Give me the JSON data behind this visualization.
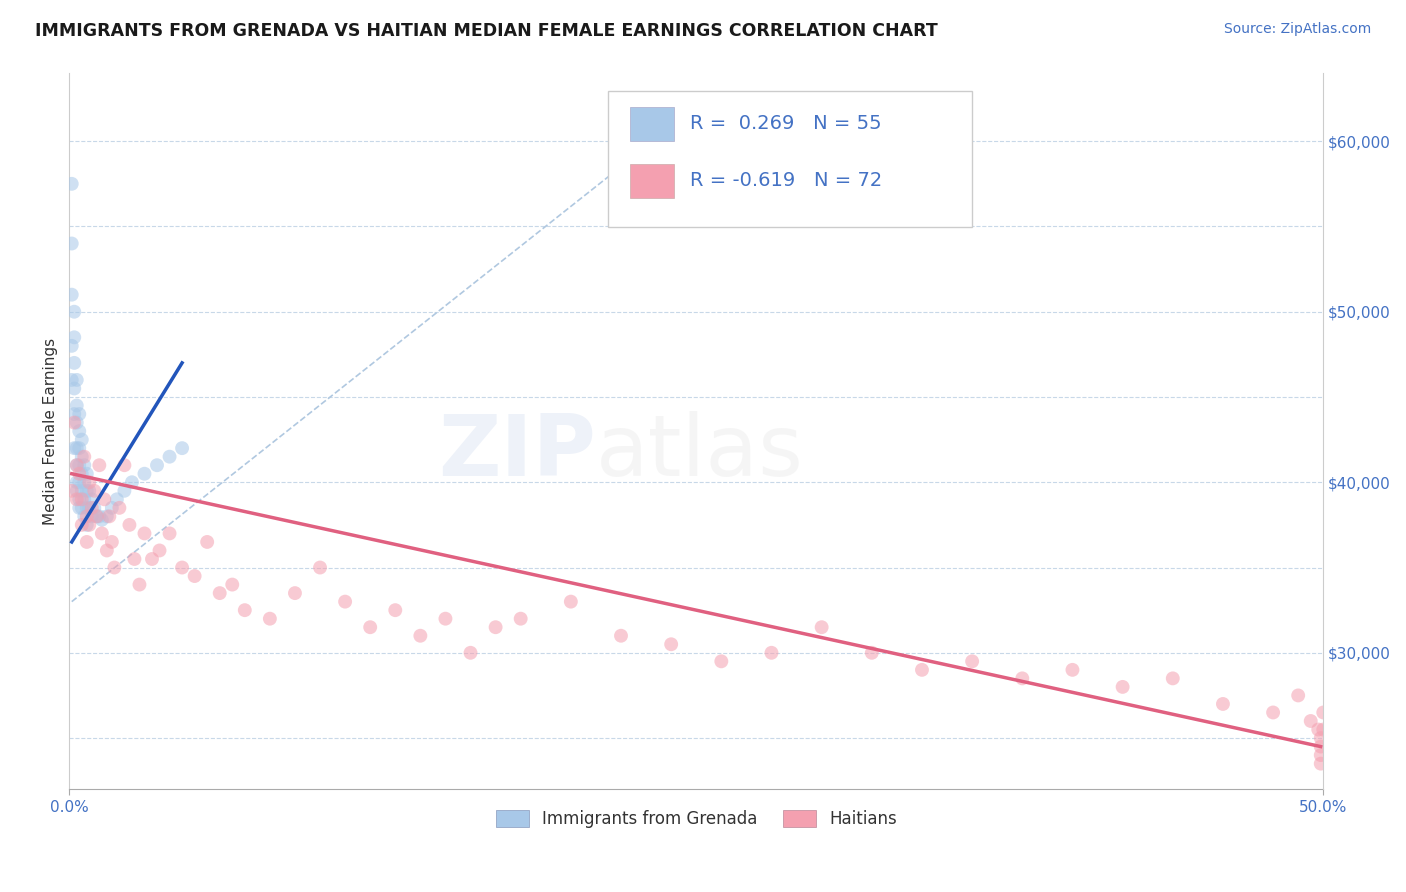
{
  "title": "IMMIGRANTS FROM GRENADA VS HAITIAN MEDIAN FEMALE EARNINGS CORRELATION CHART",
  "source": "Source: ZipAtlas.com",
  "ylabel": "Median Female Earnings",
  "xlim": [
    0.0,
    0.5
  ],
  "ylim": [
    22000,
    64000
  ],
  "yticks": [
    30000,
    40000,
    50000,
    60000
  ],
  "ytick_labels": [
    "$30,000",
    "$40,000",
    "$50,000",
    "$60,000"
  ],
  "xticks": [
    0.0,
    0.5
  ],
  "xtick_labels": [
    "0.0%",
    "50.0%"
  ],
  "legend_r1": "R =  0.269   N = 55",
  "legend_r2": "R = -0.619   N = 72",
  "legend_bottom": [
    "Immigrants from Grenada",
    "Haitians"
  ],
  "legend_bottom_colors": [
    "#a8c8e8",
    "#f4a0b0"
  ],
  "blue_color": "#a8c8e8",
  "pink_color": "#f4a0b0",
  "blue_line_color": "#2255bb",
  "pink_line_color": "#e06080",
  "dash_line_color": "#b0c8e0",
  "axis_color": "#4472c4",
  "title_color": "#1a1a1a",
  "background_color": "#ffffff",
  "grid_color": "#c8d8e8",
  "title_fontsize": 12.5,
  "source_fontsize": 10,
  "tick_fontsize": 11,
  "ylabel_fontsize": 11,
  "scatter_alpha": 0.55,
  "scatter_size": 100,
  "blue_scatter_x": [
    0.001,
    0.001,
    0.001,
    0.001,
    0.001,
    0.002,
    0.002,
    0.002,
    0.002,
    0.002,
    0.002,
    0.003,
    0.003,
    0.003,
    0.003,
    0.003,
    0.003,
    0.003,
    0.004,
    0.004,
    0.004,
    0.004,
    0.004,
    0.004,
    0.004,
    0.005,
    0.005,
    0.005,
    0.005,
    0.005,
    0.006,
    0.006,
    0.006,
    0.006,
    0.007,
    0.007,
    0.007,
    0.007,
    0.008,
    0.008,
    0.009,
    0.009,
    0.01,
    0.011,
    0.012,
    0.013,
    0.015,
    0.017,
    0.019,
    0.022,
    0.025,
    0.03,
    0.035,
    0.04,
    0.045
  ],
  "blue_scatter_y": [
    57500,
    54000,
    51000,
    48000,
    46000,
    50000,
    48500,
    47000,
    45500,
    44000,
    42000,
    46000,
    44500,
    43500,
    42000,
    41000,
    40000,
    39500,
    44000,
    43000,
    42000,
    41000,
    40000,
    39000,
    38500,
    42500,
    41500,
    40500,
    39500,
    38500,
    41000,
    40000,
    39000,
    38000,
    40500,
    39500,
    38500,
    37500,
    39500,
    38500,
    39000,
    38000,
    38500,
    38000,
    38000,
    37800,
    38000,
    38500,
    39000,
    39500,
    40000,
    40500,
    41000,
    41500,
    42000
  ],
  "pink_scatter_x": [
    0.001,
    0.002,
    0.003,
    0.003,
    0.004,
    0.005,
    0.005,
    0.006,
    0.007,
    0.007,
    0.008,
    0.008,
    0.009,
    0.01,
    0.011,
    0.012,
    0.013,
    0.014,
    0.015,
    0.016,
    0.017,
    0.018,
    0.02,
    0.022,
    0.024,
    0.026,
    0.028,
    0.03,
    0.033,
    0.036,
    0.04,
    0.045,
    0.05,
    0.055,
    0.06,
    0.065,
    0.07,
    0.08,
    0.09,
    0.1,
    0.11,
    0.12,
    0.13,
    0.14,
    0.15,
    0.16,
    0.17,
    0.18,
    0.2,
    0.22,
    0.24,
    0.26,
    0.28,
    0.3,
    0.32,
    0.34,
    0.36,
    0.38,
    0.4,
    0.42,
    0.44,
    0.46,
    0.48,
    0.49,
    0.495,
    0.498,
    0.499,
    0.499,
    0.499,
    0.499,
    0.5,
    0.5
  ],
  "pink_scatter_y": [
    39500,
    43500,
    41000,
    39000,
    40500,
    39000,
    37500,
    41500,
    38000,
    36500,
    40000,
    37500,
    38500,
    39500,
    38000,
    41000,
    37000,
    39000,
    36000,
    38000,
    36500,
    35000,
    38500,
    41000,
    37500,
    35500,
    34000,
    37000,
    35500,
    36000,
    37000,
    35000,
    34500,
    36500,
    33500,
    34000,
    32500,
    32000,
    33500,
    35000,
    33000,
    31500,
    32500,
    31000,
    32000,
    30000,
    31500,
    32000,
    33000,
    31000,
    30500,
    29500,
    30000,
    31500,
    30000,
    29000,
    29500,
    28500,
    29000,
    28000,
    28500,
    27000,
    26500,
    27500,
    26000,
    25500,
    25000,
    24500,
    24000,
    23500,
    26500,
    25500
  ],
  "blue_line_x": [
    0.001,
    0.045
  ],
  "blue_line_y": [
    36500,
    47000
  ],
  "dash_line_x": [
    0.001,
    0.25
  ],
  "dash_line_y": [
    33000,
    62000
  ],
  "pink_line_x": [
    0.001,
    0.499
  ],
  "pink_line_y": [
    40500,
    24500
  ]
}
